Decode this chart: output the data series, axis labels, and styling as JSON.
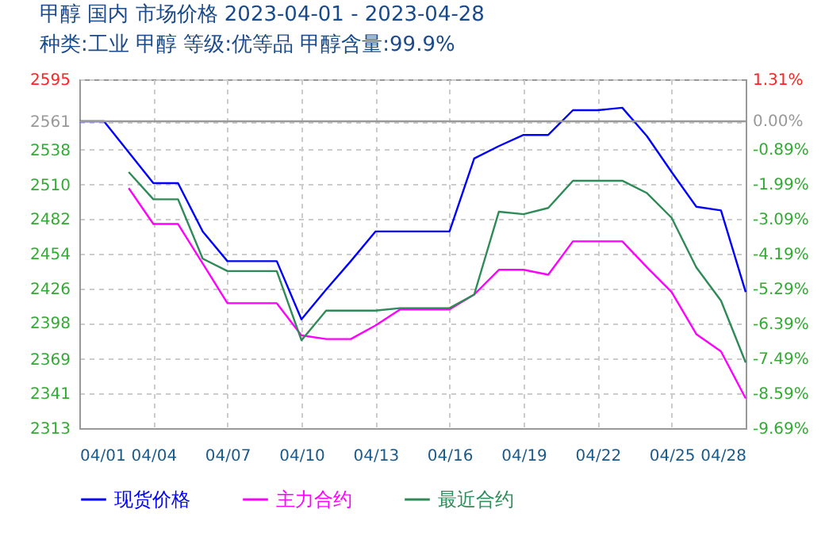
{
  "chart_data": {
    "type": "line",
    "title": "甲醇 国内 市场价格 2023-04-01 - 2023-04-28",
    "subtitle": "种类:工业 甲醇 等级:优等品 甲醇含量:99.9%",
    "x": [
      "2023-04-01",
      "2023-04-02",
      "2023-04-03",
      "2023-04-04",
      "2023-04-05",
      "2023-04-06",
      "2023-04-07",
      "2023-04-08",
      "2023-04-09",
      "2023-04-10",
      "2023-04-11",
      "2023-04-12",
      "2023-04-13",
      "2023-04-14",
      "2023-04-15",
      "2023-04-16",
      "2023-04-17",
      "2023-04-18",
      "2023-04-19",
      "2023-04-20",
      "2023-04-21",
      "2023-04-22",
      "2023-04-23",
      "2023-04-24",
      "2023-04-25",
      "2023-04-26",
      "2023-04-27",
      "2023-04-28"
    ],
    "series": [
      {
        "name": "现货价格",
        "color": "#0000ff",
        "values": [
          2561,
          2561,
          2536,
          2511,
          2511,
          2472,
          2448,
          2448,
          2448,
          2401,
          2425,
          2448,
          2472,
          2472,
          2472,
          2472,
          2531,
          2541,
          2550,
          2550,
          2570,
          2570,
          2572,
          2549,
          2520,
          2492,
          2489,
          2423
        ]
      },
      {
        "name": "主力合约",
        "color": "#ff00ff",
        "values": [
          null,
          null,
          2507,
          2478,
          2478,
          2446,
          2414,
          2414,
          2414,
          2388,
          2385,
          2385,
          2396,
          2409,
          2409,
          2409,
          2421,
          2441,
          2441,
          2437,
          2464,
          2464,
          2464,
          2443,
          2423,
          2389,
          2375,
          2337
        ]
      },
      {
        "name": "最近合约",
        "color": "#2e8b57",
        "values": [
          null,
          null,
          2520,
          2498,
          2498,
          2450,
          2440,
          2440,
          2440,
          2384,
          2408,
          2408,
          2408,
          2410,
          2410,
          2410,
          2421,
          2488,
          2486,
          2491,
          2513,
          2513,
          2513,
          2503,
          2483,
          2443,
          2416,
          2366
        ]
      }
    ],
    "xlim": [
      "2023-04-01",
      "2023-04-28"
    ],
    "xticks": [
      {
        "value": "2023-04-01",
        "label": "04/01"
      },
      {
        "value": "2023-04-04",
        "label": "04/04"
      },
      {
        "value": "2023-04-07",
        "label": "04/07"
      },
      {
        "value": "2023-04-10",
        "label": "04/10"
      },
      {
        "value": "2023-04-13",
        "label": "04/13"
      },
      {
        "value": "2023-04-16",
        "label": "04/16"
      },
      {
        "value": "2023-04-19",
        "label": "04/19"
      },
      {
        "value": "2023-04-22",
        "label": "04/22"
      },
      {
        "value": "2023-04-25",
        "label": "04/25"
      },
      {
        "value": "2023-04-28",
        "label": "04/28"
      }
    ],
    "ylim": [
      2313,
      2595
    ],
    "yticks": [
      2313,
      2341,
      2369,
      2398,
      2426,
      2454,
      2482,
      2510,
      2538,
      2561,
      2595
    ],
    "y2lim": [
      -9.69,
      1.31
    ],
    "y2ticks": [
      {
        "value": -9.69,
        "label": "-9.69%"
      },
      {
        "value": -8.59,
        "label": "-8.59%"
      },
      {
        "value": -7.49,
        "label": "-7.49%"
      },
      {
        "value": -6.39,
        "label": "-6.39%"
      },
      {
        "value": -5.29,
        "label": "-5.29%"
      },
      {
        "value": -4.19,
        "label": "-4.19%"
      },
      {
        "value": -3.09,
        "label": "-3.09%"
      },
      {
        "value": -1.99,
        "label": "-1.99%"
      },
      {
        "value": -0.89,
        "label": "-0.89%"
      },
      {
        "value": 0,
        "label": "0.00%"
      },
      {
        "value": 1.31,
        "label": "1.31%"
      }
    ],
    "ref_lines": [
      {
        "axis": "y",
        "value": 2561,
        "color": "#999999"
      }
    ],
    "grid": true,
    "legend": "bottom",
    "line_style": "solid"
  }
}
